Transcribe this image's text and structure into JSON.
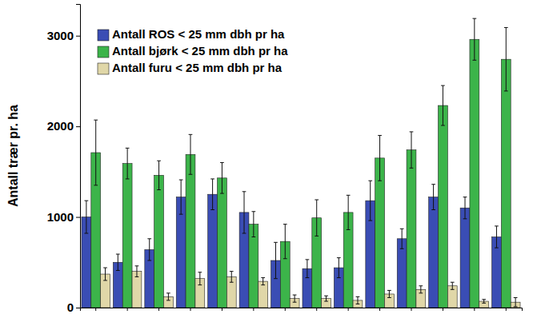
{
  "chart_data": {
    "type": "bar",
    "y_label": "Antall trær pr. ha",
    "categories": [
      null,
      null,
      null,
      null,
      null,
      null,
      null,
      null,
      null,
      null,
      null,
      null,
      null,
      null
    ],
    "series": [
      {
        "name": "Antall ROS < 25 mm dbh pr ha",
        "color": "#3a4db4",
        "values": [
          1000,
          500,
          640,
          1220,
          1250,
          1050,
          520,
          430,
          440,
          1180,
          760,
          1220,
          1100,
          780
        ],
        "errors": [
          180,
          90,
          120,
          190,
          170,
          230,
          200,
          100,
          110,
          220,
          110,
          140,
          120,
          120
        ]
      },
      {
        "name": "Antall bjørk < 25 mm dbh pr ha",
        "color": "#3cb44a",
        "values": [
          1710,
          1590,
          1460,
          1690,
          1430,
          920,
          730,
          990,
          1050,
          1650,
          1740,
          2230,
          2960,
          2740
        ],
        "errors": [
          360,
          170,
          160,
          220,
          170,
          140,
          190,
          200,
          190,
          250,
          200,
          220,
          230,
          350
        ]
      },
      {
        "name": "Antall furu < 25 mm dbh pr ha",
        "color": "#e0d7a8",
        "values": [
          370,
          400,
          120,
          320,
          340,
          290,
          100,
          100,
          80,
          150,
          200,
          240,
          70,
          60
        ],
        "errors": [
          70,
          60,
          40,
          70,
          60,
          40,
          40,
          30,
          40,
          40,
          40,
          40,
          20,
          50
        ]
      }
    ],
    "ylim": [
      0,
      3350
    ],
    "yticks": [
      0,
      1000,
      2000,
      3000
    ],
    "grid": false,
    "legend": "top-left",
    "tick_labels": "y"
  }
}
